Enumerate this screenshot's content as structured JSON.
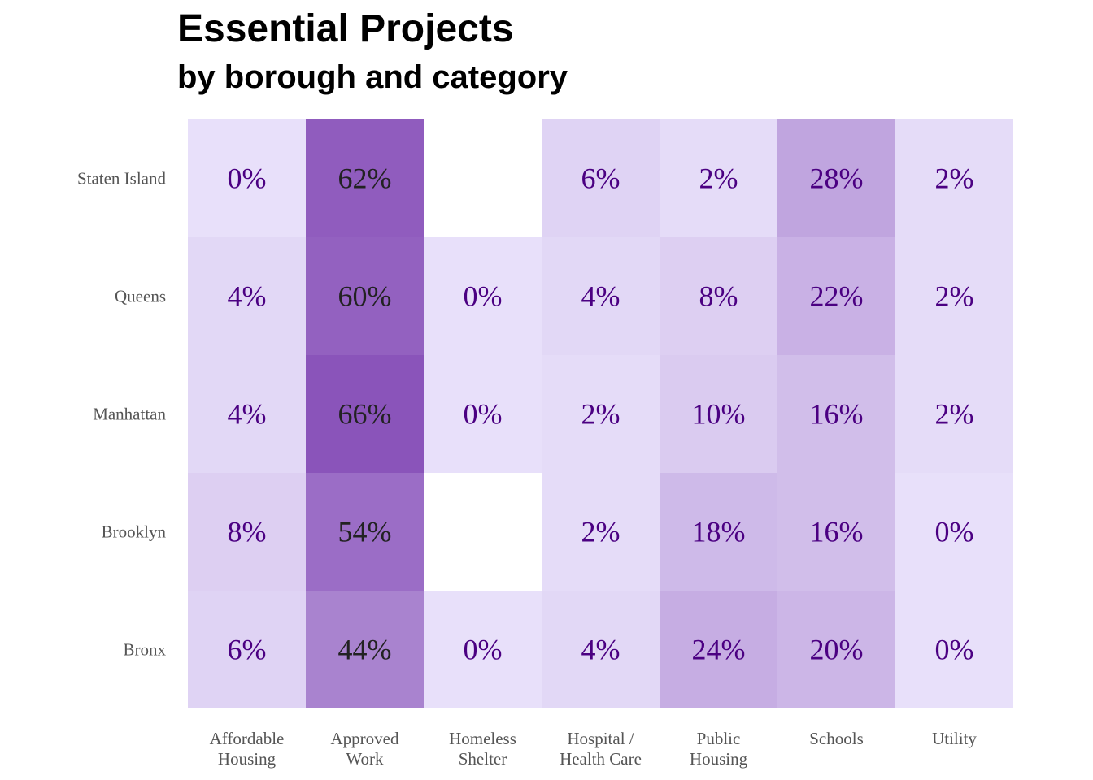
{
  "chart_data": {
    "type": "heatmap",
    "title": "Essential Projects",
    "subtitle": "by borough and category",
    "xlabel": "",
    "ylabel": "",
    "x_categories": [
      [
        "Affordable",
        "Housing"
      ],
      [
        "Approved",
        "Work"
      ],
      [
        "Homeless",
        "Shelter"
      ],
      [
        "Hospital /",
        "Health Care"
      ],
      [
        "Public",
        "Housing"
      ],
      [
        "Schools"
      ],
      [
        "Utility"
      ]
    ],
    "y_categories": [
      "Staten Island",
      "Queens",
      "Manhattan",
      "Brooklyn",
      "Bronx"
    ],
    "values": [
      [
        0,
        62,
        null,
        6,
        2,
        28,
        2
      ],
      [
        4,
        60,
        0,
        4,
        8,
        22,
        2
      ],
      [
        4,
        66,
        0,
        2,
        10,
        16,
        2
      ],
      [
        8,
        54,
        null,
        2,
        18,
        16,
        0
      ],
      [
        6,
        44,
        0,
        4,
        24,
        20,
        0
      ]
    ],
    "value_suffix": "%",
    "color_scale": {
      "low": "#e8e0fa",
      "high": "#8a54ba",
      "text_low": "#4b0082",
      "text_high": "#222222",
      "missing": "#ffffff"
    },
    "grid": false,
    "legend": "none"
  }
}
